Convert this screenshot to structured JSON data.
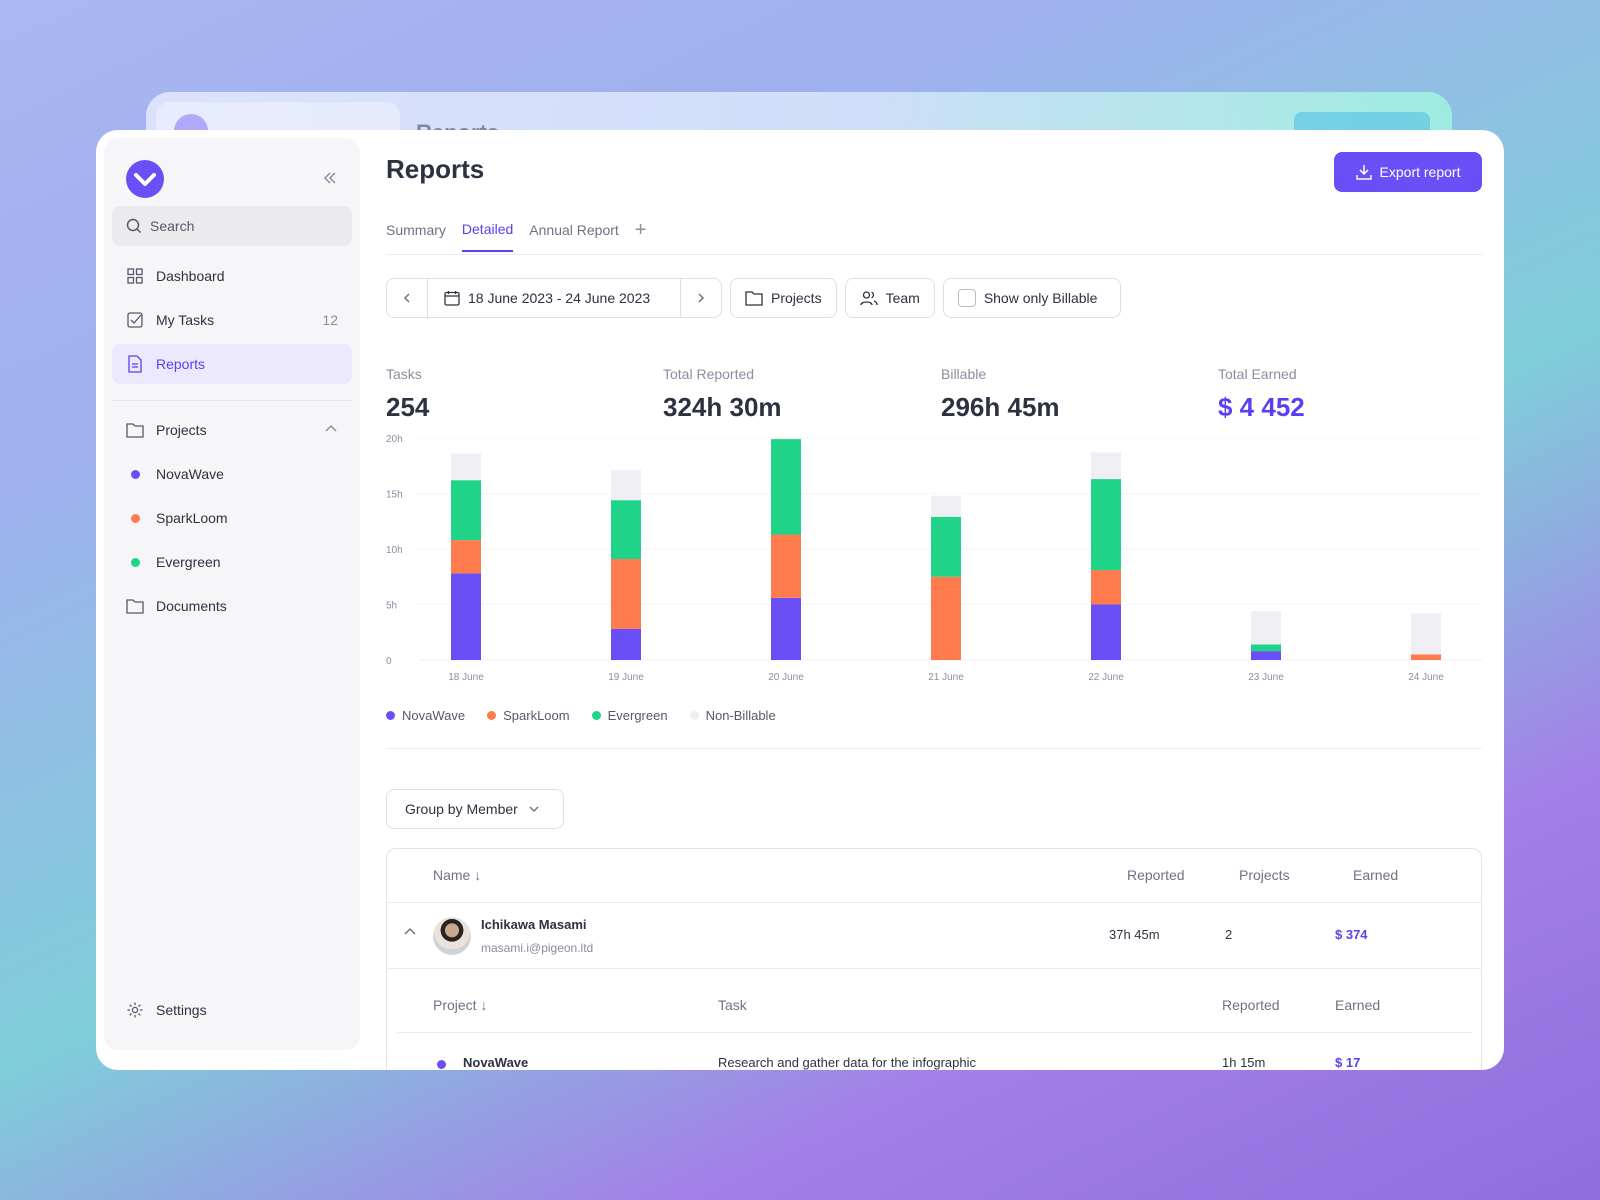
{
  "sidebar": {
    "search_placeholder": "Search",
    "nav": [
      {
        "label": "Dashboard"
      },
      {
        "label": "My Tasks",
        "count": "12"
      },
      {
        "label": "Reports"
      }
    ],
    "projects_label": "Projects",
    "projects": [
      {
        "label": "NovaWave",
        "color": "#6b4ff6"
      },
      {
        "label": "SparkLoom",
        "color": "#ff7a4d"
      },
      {
        "label": "Evergreen",
        "color": "#1fd388"
      }
    ],
    "documents_label": "Documents",
    "settings_label": "Settings"
  },
  "header": {
    "title": "Reports",
    "export_label": "Export report"
  },
  "tabs": [
    "Summary",
    "Detailed",
    "Annual Report"
  ],
  "active_tab": "Detailed",
  "filters": {
    "date_range": "18 June 2023 - 24 June 2023",
    "projects_label": "Projects",
    "team_label": "Team",
    "billable_label": "Show only Billable"
  },
  "kpis": [
    {
      "label": "Tasks",
      "value": "254"
    },
    {
      "label": "Total Reported",
      "value": "324h 30m"
    },
    {
      "label": "Billable",
      "value": "296h 45m"
    },
    {
      "label": "Total Earned",
      "value": "$ 4 452"
    }
  ],
  "chart_data": {
    "type": "bar",
    "stacked": true,
    "categories": [
      "18 June",
      "19 June",
      "20 June",
      "21 June",
      "22 June",
      "23 June",
      "24 June"
    ],
    "y_ticks": [
      "0",
      "5h",
      "10h",
      "15h",
      "20h"
    ],
    "ylim": [
      0,
      20
    ],
    "series": [
      {
        "name": "NovaWave",
        "color": "#6b4ff6",
        "values": [
          7.8,
          2.8,
          5.6,
          0,
          5.0,
          0.8,
          0
        ]
      },
      {
        "name": "SparkLoom",
        "color": "#ff7a4d",
        "values": [
          3.0,
          6.3,
          5.7,
          7.5,
          3.1,
          0,
          0.5
        ]
      },
      {
        "name": "Evergreen",
        "color": "#1fd388",
        "values": [
          5.4,
          5.3,
          8.6,
          5.4,
          8.2,
          0.6,
          0
        ]
      },
      {
        "name": "Non-Billable",
        "color": "#efeff3",
        "values": [
          2.4,
          2.7,
          0,
          1.9,
          2.4,
          3.0,
          3.7
        ]
      }
    ],
    "grid": true,
    "legend": "bottom-left"
  },
  "group_by_label": "Group by Member",
  "table": {
    "columns": {
      "name": "Name",
      "reported": "Reported",
      "projects": "Projects",
      "earned": "Earned"
    },
    "member": {
      "name": "Ichikawa Masami",
      "email": "masami.i@pigeon.ltd",
      "reported": "37h 45m",
      "projects": "2",
      "earned": "$ 374"
    },
    "sub_columns": {
      "project": "Project",
      "task": "Task",
      "reported": "Reported",
      "earned": "Earned"
    },
    "sub_rows": [
      {
        "project": "NovaWave",
        "task": "Research and gather data for the infographic",
        "reported": "1h 15m",
        "earned": "$ 17"
      }
    ]
  },
  "colors": {
    "accent": "#6b4ff6",
    "text": "#2d3142",
    "muted": "#8a8ea0"
  }
}
